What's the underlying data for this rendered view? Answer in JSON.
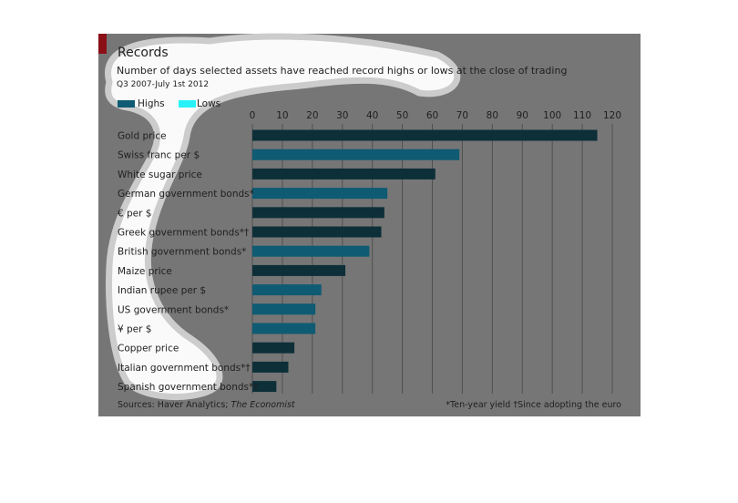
{
  "title": "Records",
  "subtitle": "Number of days selected assets have reached record highs or lows at the close of trading",
  "period": "Q3 2007-July 1st 2012",
  "legend": {
    "highs": "Highs",
    "lows": "Lows"
  },
  "source_prefix": "Sources: Haver Analytics; ",
  "source_italic": "The Economist",
  "footnote": "*Ten-year yield   †Since adopting the euro",
  "colors": {
    "highs": "#0e5b73",
    "lows": "#27f2f7",
    "dark_bar": "#0d2f38",
    "panel": "#767676",
    "accent": "#8a0f16"
  },
  "chart_data": {
    "type": "bar",
    "orientation": "horizontal",
    "title": "Records",
    "xlim": [
      0,
      120
    ],
    "xticks": [
      0,
      10,
      20,
      30,
      40,
      50,
      60,
      70,
      80,
      90,
      100,
      110,
      120
    ],
    "grid": true,
    "legend_position": "top-left",
    "categories": [
      "Gold price",
      "Swiss franc per $",
      "White sugar price",
      "German government bonds*",
      "€ per $",
      "Greek government bonds*†",
      "British government bonds*",
      "Maize price",
      "Indian rupee per $",
      "US government bonds*",
      "¥ per $",
      "Copper price",
      "Italian government bonds*†",
      "Spanish government bonds*†"
    ],
    "series": [
      {
        "name": "Highs",
        "values": [
          115,
          69,
          61,
          45,
          44,
          43,
          39,
          31,
          23,
          21,
          21,
          14,
          12,
          8
        ]
      },
      {
        "name": "Lows",
        "values": [
          0,
          0,
          0,
          0,
          0,
          0,
          0,
          0,
          0,
          0,
          0,
          0,
          0,
          0
        ]
      }
    ],
    "bar_shade": [
      "dark",
      "teal",
      "dark",
      "teal",
      "dark",
      "dark",
      "teal",
      "dark",
      "teal",
      "teal",
      "teal",
      "dark",
      "dark",
      "dark"
    ]
  }
}
